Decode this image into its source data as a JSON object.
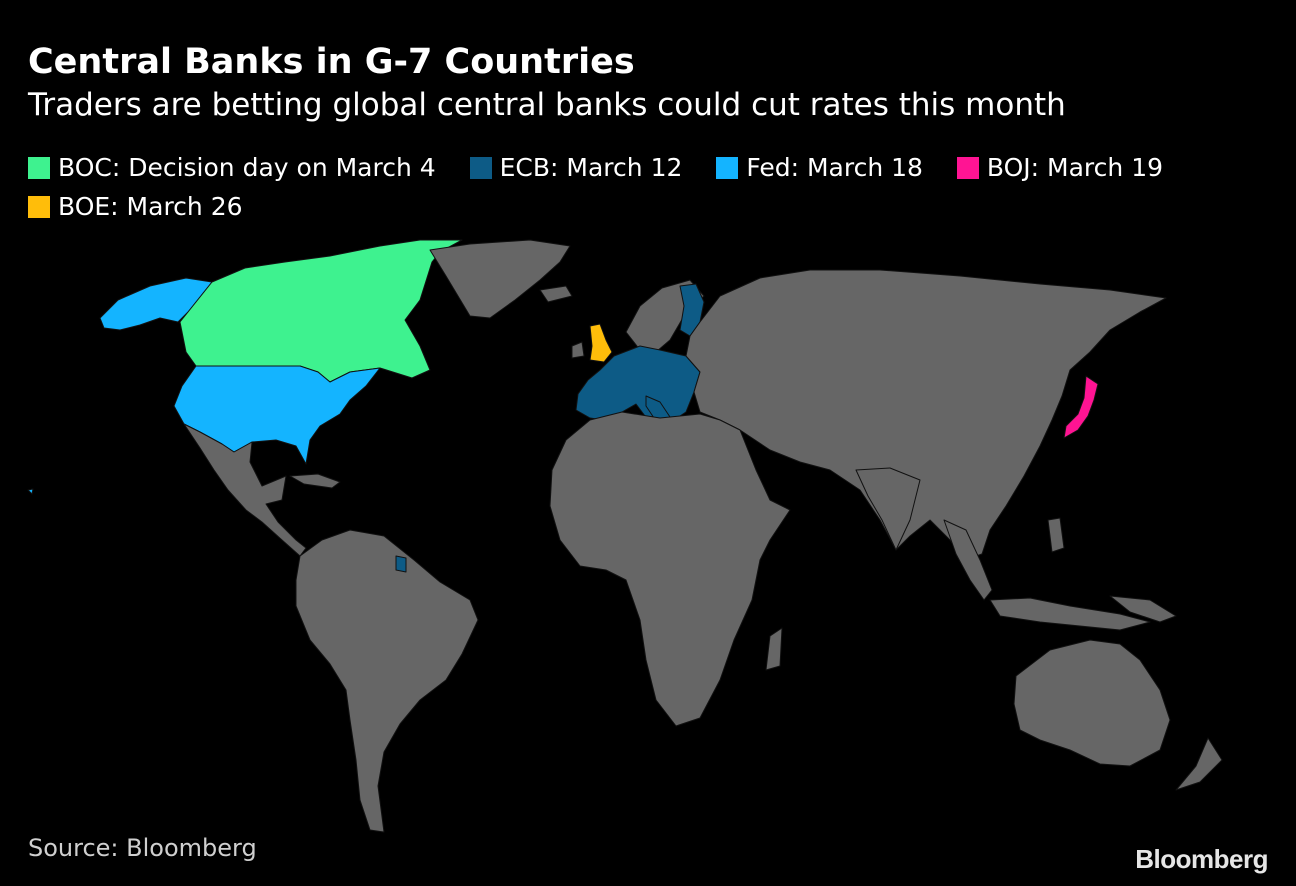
{
  "header": {
    "title": "Central Banks in G-7 Countries",
    "subtitle": "Traders are betting global central banks could cut rates this month"
  },
  "legend": [
    {
      "label": "BOC: Decision day on March 4",
      "color": "#3ef28f"
    },
    {
      "label": "ECB: March 12",
      "color": "#0d5b86"
    },
    {
      "label": "Fed: March 18",
      "color": "#14b4ff"
    },
    {
      "label": "BOJ: March 19",
      "color": "#ff1493"
    },
    {
      "label": "BOE: March 26",
      "color": "#ffbd0a"
    }
  ],
  "map": {
    "land_color": "#666666",
    "ocean_color": "#000000"
  },
  "footer": {
    "source": "Source: Bloomberg",
    "logo": "Bloomberg"
  }
}
